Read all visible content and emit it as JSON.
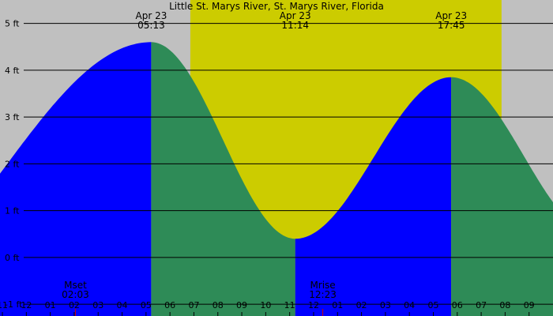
{
  "chart_data": {
    "type": "area",
    "title": "Little St. Marys River, St. Marys River, Florida",
    "y_unit": "ft",
    "ylim": [
      -1.25,
      5.5
    ],
    "x_range_hours": [
      22.9,
      46.0
    ],
    "daylight_hours": [
      30.85,
      43.85
    ],
    "y_ticks": [
      {
        "value": 5,
        "label": "5 ft"
      },
      {
        "value": 4,
        "label": "4 ft"
      },
      {
        "value": 3,
        "label": "3 ft"
      },
      {
        "value": 2,
        "label": "2 ft"
      },
      {
        "value": 1,
        "label": "1 ft"
      },
      {
        "value": 0,
        "label": "0 ft"
      },
      {
        "value": -1,
        "label": "-1 ft"
      }
    ],
    "tides": [
      {
        "hour": 29.217,
        "height": 4.6,
        "date": "Apr 23",
        "time": "05:13",
        "type": "high"
      },
      {
        "hour": 35.233,
        "height": 0.4,
        "date": "Apr 23",
        "time": "11:14",
        "type": "low"
      },
      {
        "hour": 41.75,
        "height": 3.85,
        "date": "Apr 23",
        "time": "17:45",
        "type": "high"
      }
    ],
    "boundary_extrapolation": [
      {
        "hour": 16.9,
        "height": -0.8
      },
      {
        "hour": 47.8,
        "height": 0.5
      }
    ],
    "hour_labels": [
      {
        "hour": 23,
        "label": "11"
      },
      {
        "hour": 24,
        "label": "12"
      },
      {
        "hour": 25,
        "label": "01"
      },
      {
        "hour": 26,
        "label": "02"
      },
      {
        "hour": 27,
        "label": "03"
      },
      {
        "hour": 28,
        "label": "04"
      },
      {
        "hour": 29,
        "label": "05"
      },
      {
        "hour": 30,
        "label": "06"
      },
      {
        "hour": 31,
        "label": "07"
      },
      {
        "hour": 32,
        "label": "08"
      },
      {
        "hour": 33,
        "label": "09"
      },
      {
        "hour": 34,
        "label": "10"
      },
      {
        "hour": 35,
        "label": "11"
      },
      {
        "hour": 36,
        "label": "12"
      },
      {
        "hour": 37,
        "label": "01"
      },
      {
        "hour": 38,
        "label": "02"
      },
      {
        "hour": 39,
        "label": "03"
      },
      {
        "hour": 40,
        "label": "04"
      },
      {
        "hour": 41,
        "label": "05"
      },
      {
        "hour": 42,
        "label": "06"
      },
      {
        "hour": 43,
        "label": "07"
      },
      {
        "hour": 44,
        "label": "08"
      },
      {
        "hour": 45,
        "label": "09"
      }
    ],
    "moon_events": [
      {
        "label": "Mset",
        "time": "02:03",
        "hour": 26.05
      },
      {
        "label": "Mrise",
        "time": "12:23",
        "hour": 36.383
      }
    ],
    "colors": {
      "night": "#c0c0c0",
      "day": "#cccc00",
      "rising": "#0000ff",
      "falling": "#2e8b57",
      "grid": "#000000",
      "moon_marker": "#cc0000"
    }
  }
}
